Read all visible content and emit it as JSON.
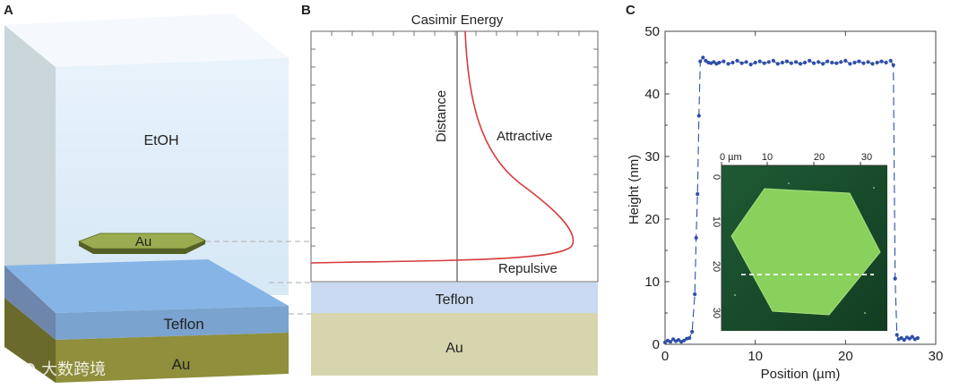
{
  "panels": {
    "a": {
      "letter": "A",
      "labels": {
        "medium": "EtOH",
        "flake": "Au",
        "film": "Teflon",
        "substrate": "Au"
      }
    },
    "b": {
      "letter": "B",
      "title": "Casimir Energy",
      "axis_label": "Distance",
      "attractive_label": "Attractive",
      "repulsive_label": "Repulsive",
      "film_label": "Teflon",
      "substrate_label": "Au"
    },
    "c": {
      "letter": "C",
      "xlabel": "Position (µm)",
      "ylabel": "Height (nm)",
      "inset": {
        "x_ticks": [
          "0 µm",
          "10",
          "20",
          "30"
        ],
        "y_ticks": [
          "0",
          "10",
          "20",
          "30"
        ]
      }
    }
  },
  "watermark": {
    "text": "大数跨境"
  },
  "chart_data": {
    "type": "scatter",
    "title": "",
    "xlabel": "Position (µm)",
    "ylabel": "Height (nm)",
    "xlim": [
      0,
      30
    ],
    "ylim": [
      0,
      50
    ],
    "x_ticks": [
      0,
      10,
      20,
      30
    ],
    "y_ticks": [
      0,
      10,
      20,
      30,
      40,
      50
    ],
    "series": [
      {
        "color": "#2f4fa8",
        "x": [
          0.0,
          0.3,
          0.6,
          0.9,
          1.2,
          1.5,
          1.8,
          2.1,
          2.4,
          2.7,
          3.0,
          3.3,
          3.45,
          3.6,
          3.75,
          3.9,
          4.2,
          4.5,
          4.8,
          5.1,
          5.4,
          5.7,
          6.0,
          6.5,
          7.0,
          7.5,
          8.0,
          8.5,
          9.0,
          9.5,
          10.0,
          10.5,
          11.0,
          11.5,
          12.0,
          12.5,
          13.0,
          13.5,
          14.0,
          14.5,
          15.0,
          15.5,
          16.0,
          16.5,
          17.0,
          17.5,
          18.0,
          18.5,
          19.0,
          19.5,
          20.0,
          20.5,
          21.0,
          21.5,
          22.0,
          22.5,
          23.0,
          23.5,
          24.0,
          24.5,
          25.0,
          25.3,
          25.5,
          25.7,
          25.9,
          26.2,
          26.5,
          26.8,
          27.1,
          27.4,
          27.7,
          28.0
        ],
        "y": [
          0.3,
          0.6,
          0.4,
          0.8,
          0.5,
          0.7,
          0.4,
          0.6,
          0.9,
          1.0,
          2.0,
          8.0,
          17.0,
          24.0,
          36.5,
          45.2,
          45.8,
          45.3,
          45.0,
          44.9,
          45.1,
          44.8,
          45.0,
          45.2,
          44.8,
          45.0,
          45.3,
          44.9,
          45.1,
          44.7,
          45.0,
          45.2,
          44.9,
          45.1,
          45.3,
          44.8,
          45.0,
          45.2,
          44.9,
          45.1,
          44.8,
          45.0,
          45.3,
          44.9,
          45.1,
          44.8,
          45.2,
          45.0,
          44.9,
          45.1,
          45.3,
          44.8,
          45.0,
          45.2,
          44.9,
          45.1,
          44.8,
          45.0,
          45.2,
          45.0,
          45.3,
          44.6,
          10.5,
          1.5,
          0.8,
          1.0,
          0.7,
          1.1,
          0.9,
          1.2,
          0.8,
          1.0
        ]
      }
    ],
    "grid": false,
    "legend": "none"
  }
}
